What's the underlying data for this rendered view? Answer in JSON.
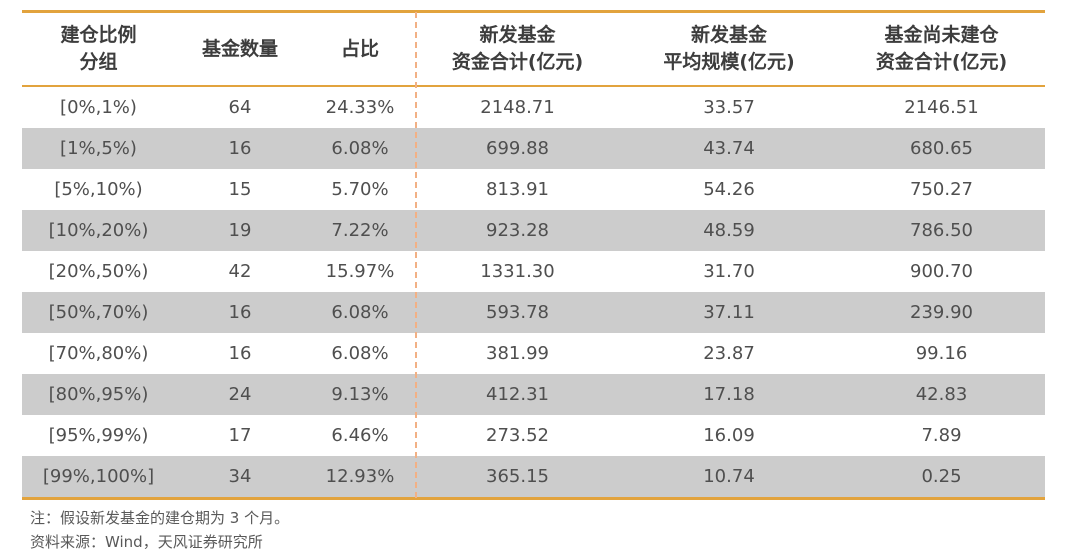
{
  "chart_data": {
    "type": "table",
    "columns": [
      [
        "建仓比例",
        "分组"
      ],
      [
        "基金数量"
      ],
      [
        "占比"
      ],
      [
        "新发基金",
        "资金合计(亿元)"
      ],
      [
        "新发基金",
        "平均规模(亿元)"
      ],
      [
        "基金尚未建仓",
        "资金合计(亿元)"
      ]
    ],
    "rows": [
      [
        "[0%,1%)",
        "64",
        "24.33%",
        "2148.71",
        "33.57",
        "2146.51"
      ],
      [
        "[1%,5%)",
        "16",
        "6.08%",
        "699.88",
        "43.74",
        "680.65"
      ],
      [
        "[5%,10%)",
        "15",
        "5.70%",
        "813.91",
        "54.26",
        "750.27"
      ],
      [
        "[10%,20%)",
        "19",
        "7.22%",
        "923.28",
        "48.59",
        "786.50"
      ],
      [
        "[20%,50%)",
        "42",
        "15.97%",
        "1331.30",
        "31.70",
        "900.70"
      ],
      [
        "[50%,70%)",
        "16",
        "6.08%",
        "593.78",
        "37.11",
        "239.90"
      ],
      [
        "[70%,80%)",
        "16",
        "6.08%",
        "381.99",
        "23.87",
        "99.16"
      ],
      [
        "[80%,95%)",
        "24",
        "9.13%",
        "412.31",
        "17.18",
        "42.83"
      ],
      [
        "[95%,99%)",
        "17",
        "6.46%",
        "273.52",
        "16.09",
        "7.89"
      ],
      [
        "[99%,100%]",
        "34",
        "12.93%",
        "365.15",
        "10.74",
        "0.25"
      ]
    ],
    "note": "注：假设新发基金的建仓期为 3 个月。",
    "source": "资料来源：Wind，天风证券研究所",
    "layout_hints": {
      "accent_line_color": "#E2A33D",
      "dashed_divider_color": "#F2B185",
      "alt_row_color": "#CCCCCC",
      "divider_after_column_index": 2
    }
  }
}
